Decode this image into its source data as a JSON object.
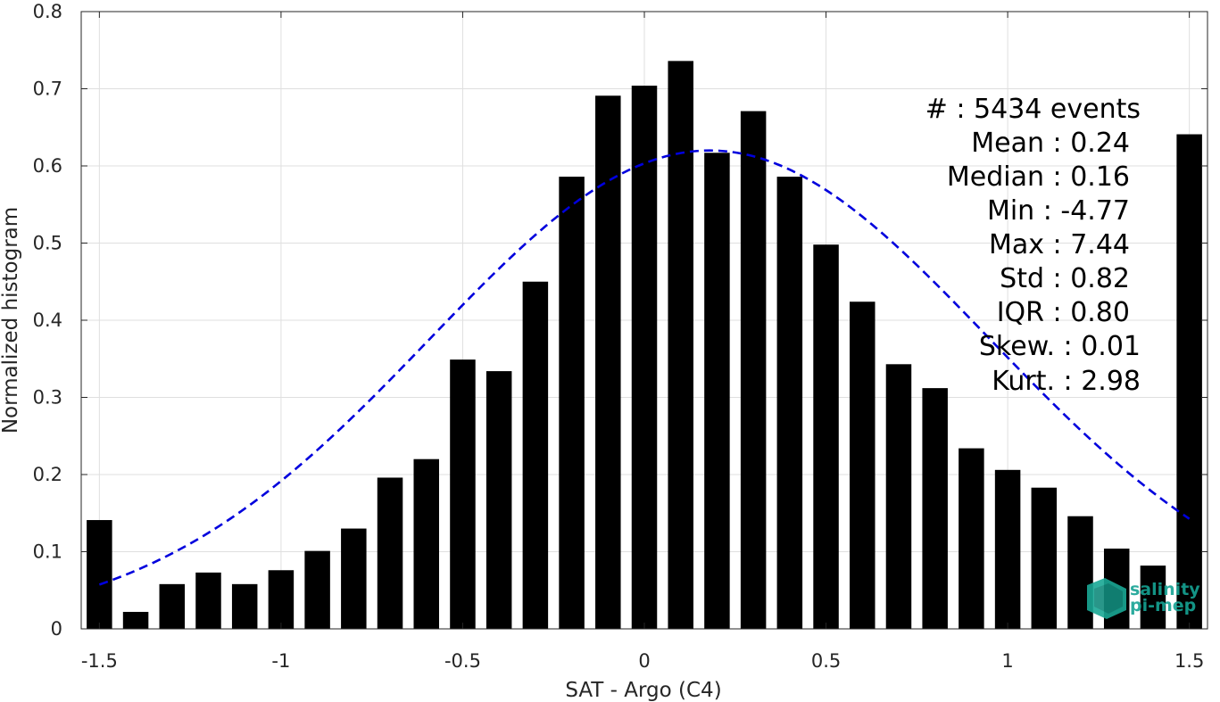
{
  "chart_data": {
    "type": "bar",
    "xlabel": "SAT - Argo (C4)",
    "ylabel": "Normalized histogram",
    "xlim": [
      -1.55,
      1.55
    ],
    "ylim": [
      0,
      0.8
    ],
    "grid": true,
    "x_ticks": [
      -1.5,
      -1,
      -0.5,
      0,
      0.5,
      1,
      1.5
    ],
    "x_tick_labels": [
      "-1.5",
      "-1",
      "-0.5",
      "0",
      "0.5",
      "1",
      "1.5"
    ],
    "y_ticks": [
      0,
      0.1,
      0.2,
      0.3,
      0.4,
      0.5,
      0.6,
      0.7,
      0.8
    ],
    "y_tick_labels": [
      "0",
      "0.1",
      "0.2",
      "0.3",
      "0.4",
      "0.5",
      "0.6",
      "0.7",
      "0.8"
    ],
    "bar_width": 0.07,
    "bars": {
      "x": [
        -1.5,
        -1.4,
        -1.3,
        -1.2,
        -1.1,
        -1.0,
        -0.9,
        -0.8,
        -0.7,
        -0.6,
        -0.5,
        -0.4,
        -0.3,
        -0.2,
        -0.1,
        0.0,
        0.1,
        0.2,
        0.3,
        0.4,
        0.5,
        0.6,
        0.7,
        0.8,
        0.9,
        1.0,
        1.1,
        1.2,
        1.3,
        1.4,
        1.5
      ],
      "values": [
        0.141,
        0.022,
        0.058,
        0.073,
        0.058,
        0.076,
        0.101,
        0.13,
        0.196,
        0.22,
        0.349,
        0.334,
        0.45,
        0.586,
        0.691,
        0.704,
        0.736,
        0.617,
        0.671,
        0.586,
        0.498,
        0.424,
        0.343,
        0.312,
        0.234,
        0.206,
        0.183,
        0.146,
        0.104,
        0.082,
        0.641
      ],
      "color": "#000000"
    },
    "fit_curve": {
      "style": "dashed",
      "color": "#0000dd",
      "mean": 0.18,
      "std": 0.77,
      "peak": 0.62,
      "x_range": [
        -1.5,
        1.5
      ]
    },
    "stats_lines": [
      "#  : 5434 events",
      "Mean : 0.24",
      "Median : 0.16",
      "Min : -4.77",
      "Max : 7.44",
      "Std : 0.82",
      "IQR : 0.80",
      "Skew. : 0.01",
      "Kurt. : 2.98"
    ]
  },
  "logo": {
    "line1": "salinity",
    "line2": "pi-mep",
    "color": "#16a394"
  }
}
